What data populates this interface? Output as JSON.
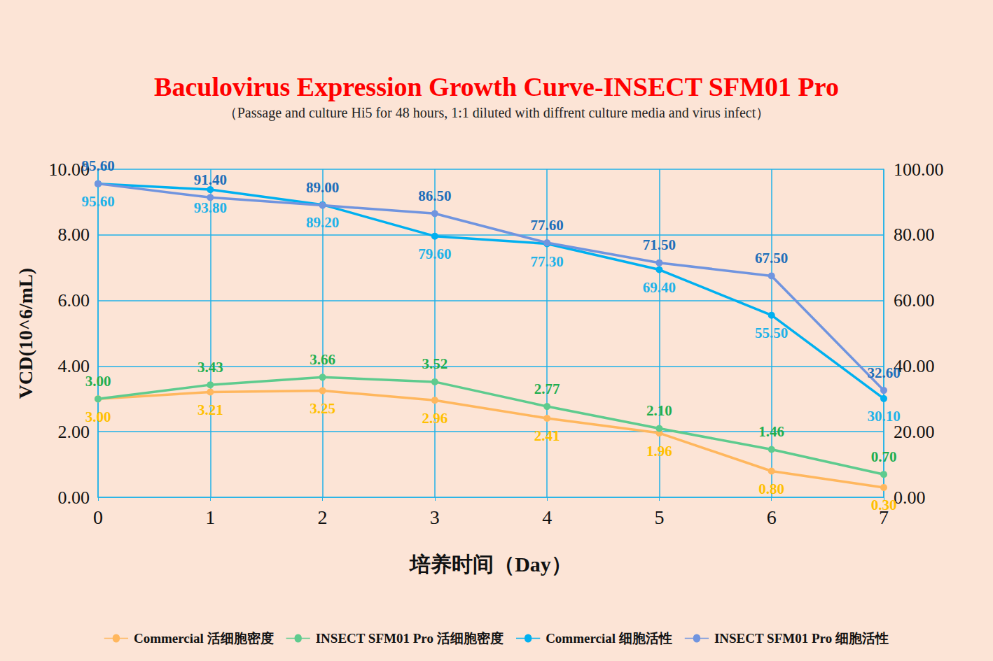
{
  "chart_data": {
    "type": "line",
    "title": "Baculovirus Expression Growth Curve-INSECT SFM01 Pro",
    "subtitle": "（Passage and culture Hi5 for 48 hours, 1:1 diluted with diffrent culture media and virus infect）",
    "x_label": "培养时间（Day）",
    "y_label": "VCD(10^6/mL)",
    "x": [
      0,
      1,
      2,
      3,
      4,
      5,
      6,
      7
    ],
    "xlim": [
      0,
      7
    ],
    "xticks": [
      0,
      1,
      2,
      3,
      4,
      5,
      6,
      7
    ],
    "ylim": [
      0,
      10
    ],
    "yticks": [
      {
        "value": 0,
        "label": "0.00"
      },
      {
        "value": 2,
        "label": "2.00"
      },
      {
        "value": 4,
        "label": "4.00"
      },
      {
        "value": 6,
        "label": "6.00"
      },
      {
        "value": 8,
        "label": "8.00"
      },
      {
        "value": 10,
        "label": "10.00"
      }
    ],
    "y2lim": [
      0,
      100
    ],
    "y2ticks": [
      {
        "value": 0,
        "label": "0.00"
      },
      {
        "value": 20,
        "label": "20.00"
      },
      {
        "value": 40,
        "label": "40.00"
      },
      {
        "value": 60,
        "label": "60.00"
      },
      {
        "value": 80,
        "label": "80.00"
      },
      {
        "value": 100,
        "label": "100.00"
      }
    ],
    "grid": true,
    "legend": "bottom",
    "data_labels": true,
    "series": [
      {
        "name": "Commercial 活细胞密度",
        "color": "#FFB75E",
        "marker": "circle",
        "values": [
          3.0,
          3.21,
          3.25,
          2.96,
          2.41,
          1.96,
          0.8,
          0.3
        ],
        "value_labels": [
          "3.00",
          "3.21",
          "3.25",
          "2.96",
          "2.41",
          "1.96",
          "0.80",
          "0.30"
        ]
      },
      {
        "name": "INSECT SFM01 Pro 活细胞密度",
        "color": "#5ECB8E",
        "marker": "circle",
        "values": [
          3.0,
          3.43,
          3.66,
          3.52,
          2.77,
          2.1,
          1.46,
          0.7
        ],
        "value_labels": [
          "3.00",
          "3.43",
          "3.66",
          "3.52",
          "2.77",
          "2.10",
          "1.46",
          "0.70"
        ]
      },
      {
        "name": "Commercial 细胞活性",
        "color": "#00B0F0",
        "marker": "circle",
        "axis": "y2",
        "values": [
          95.6,
          93.8,
          89.2,
          79.6,
          77.3,
          69.4,
          55.5,
          30.1
        ],
        "value_labels": [
          "95.60",
          "93.80",
          "89.20",
          "79.60",
          "77.30",
          "69.40",
          "55.50",
          "30.10"
        ]
      },
      {
        "name": "INSECT SFM01 Pro 细胞活性",
        "color": "#7094DF",
        "marker": "circle",
        "axis": "y2",
        "values": [
          95.6,
          91.4,
          89.0,
          86.5,
          77.6,
          71.5,
          67.5,
          32.6
        ],
        "value_labels": [
          "95.60",
          "91.40",
          "89.00",
          "86.50",
          "77.60",
          "71.50",
          "67.50",
          "32.60"
        ]
      }
    ]
  }
}
